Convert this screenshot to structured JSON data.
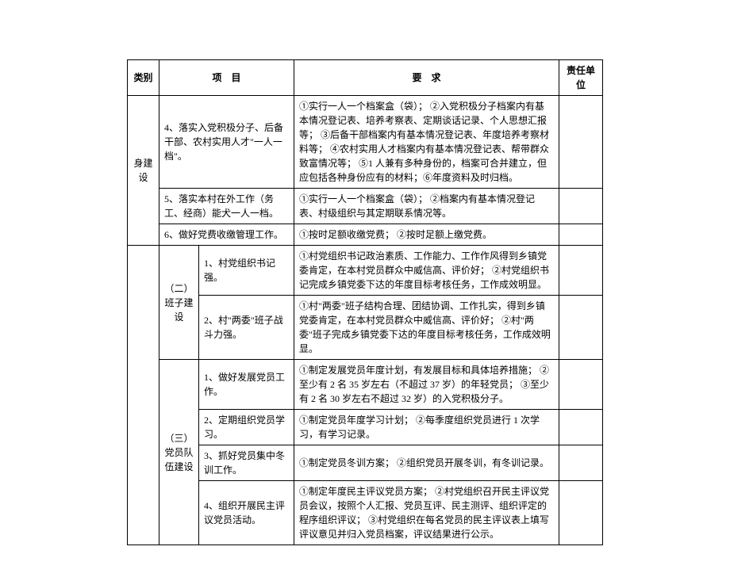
{
  "headers": {
    "category": "类别",
    "item": "项　目",
    "requirement": "要　求",
    "unit": "责任单位"
  },
  "cat1": "身建设",
  "sub2": "（二）班子建设",
  "sub3": "（三）党员队伍建设",
  "r1_item": "4、落实入党积极分子、后备干部、农村实用人才\"一人一档\"。",
  "r1_req": "①实行一人一个档案盒（袋）；\n②入党积极分子档案内有基本情况登记表、培养考察表、定期谈话记录、个人思想汇报等；\n③后备干部档案内有基本情况登记表、年度培养考察材料等；\n④农村实用人才档案内有基本情况登记表、帮带群众致富情况等；\n⑤1 人兼有多种身份的，档案可合并建立，但应包括各种身份应有的材料；⑥年度资料及时归档。",
  "r2_item": "5、落实本村在外工作（务工、经商）能犬一人一档。",
  "r2_req": "①实行一人一个档案盒（袋）；\n②档案内有基本情况登记表、村级组织与其定期联系情况等。",
  "r3_item": "6、做好党费收缴管理工作。",
  "r3_req": "①按时足额收缴党费；\n②按时足额上缴党费。",
  "r4_item": "1、村党组织书记强。",
  "r4_req": "①村党组织书记政治素质、工作能力、工作作风得到乡镇党委肯定，在本村党员群众中威信高、评价好；\n②村党组织书记完成乡镇党委下达的年度目标考核任务，工作成效明显。",
  "r5_item": "2、村\"两委\"班子战斗力强。",
  "r5_req": "①村\"两委\"班子结构合理、团结协调、工作扎实，得到乡镇党委肯定，在本村党员群众中威信高、评价好；\n②村\"两委\"班子完成乡镇党委下达的年度目标考核任务，工作成效明显。",
  "r6_item": "1、做好发展党员工作。",
  "r6_req": "①制定发展党员年度计划，有发展目标和具体培养措施；\n②至少有 2 名 35 岁左右（不超过 37 岁）的年轻党员；\n③至少有 2 名 30 岁左右不超过 32 岁）的入党积极分子。",
  "r7_item": "2、定期组织党员学习。",
  "r7_req": "①制定党员年度学习计划；\n②每季度组织党员进行 1 次学习，有学习记录。",
  "r8_item": "3、抓好党员集中冬训工作。",
  "r8_req": "①制定党员冬训方案；\n②组织党员开展冬训，有冬训记录。",
  "r9_item": "4、组织开展民主评议党员活动。",
  "r9_req": "①制定年度民主评议党员方案；\n②村党组织召开民主评议党员会议，按照个人汇报、党员互评、民主测评、组织评定的程序组织评议；\n③村党组织在每名党员的民主评议表上填写评议意见并归入党员档案，评议结果进行公示。"
}
